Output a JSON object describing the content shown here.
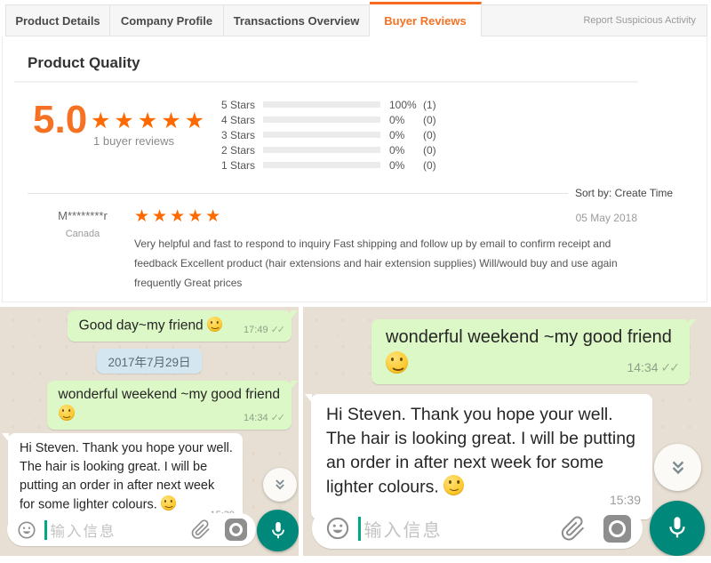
{
  "tabs": {
    "items": [
      {
        "label": "Product Details"
      },
      {
        "label": "Company Profile"
      },
      {
        "label": "Transactions Overview"
      },
      {
        "label": "Buyer Reviews"
      }
    ],
    "active": "Buyer Reviews",
    "report_link": "Report Suspicious Activity"
  },
  "reviews": {
    "title": "Product Quality",
    "score": "5.0",
    "stars": "★★★★★",
    "count_label": "1 buyer reviews",
    "breakdown": [
      {
        "label": "5 Stars",
        "percent": "100%",
        "count": "(1)",
        "value": 100
      },
      {
        "label": "4 Stars",
        "percent": "0%",
        "count": "(0)",
        "value": 0
      },
      {
        "label": "3 Stars",
        "percent": "0%",
        "count": "(0)",
        "value": 0
      },
      {
        "label": "2 Stars",
        "percent": "0%",
        "count": "(0)",
        "value": 0
      },
      {
        "label": "1 Stars",
        "percent": "0%",
        "count": "(0)",
        "value": 0
      }
    ],
    "sort_label": "Sort by: Create Time",
    "review": {
      "user": "M********r",
      "country": "Canada",
      "stars": "★★★★★",
      "date": "05 May 2018",
      "text": "Very helpful and fast to respond to inquiry Fast shipping and follow up by email to confirm receipt and feedback Excellent product (hair extensions and hair extension supplies) Will/would buy and use again frequently Great prices"
    }
  },
  "chat_left": {
    "out1": {
      "text": "Good day~my friend",
      "emoji": "slightly-smiling-face",
      "time": "17:49",
      "ticks": "✓✓"
    },
    "date_divider": "2017年7月29日",
    "out2": {
      "text": "wonderful weekend ~my good friend",
      "emoji": "slightly-smiling-face",
      "time": "14:34",
      "ticks": "✓✓"
    },
    "in1": {
      "text": "Hi Steven. Thank you hope your well. The hair is looking great. I will be putting an order in after next week for some lighter colours.",
      "emoji": "smiling-face-with-smiling-eyes",
      "time": "15:39"
    },
    "input_placeholder": "输入信息"
  },
  "chat_right": {
    "out1": {
      "text": "wonderful weekend ~my good friend",
      "emoji": "slightly-smiling-face",
      "time": "14:34",
      "ticks": "✓✓"
    },
    "in1": {
      "text": "Hi Steven. Thank you hope your well. The hair is looking great. I will be putting an order in after next week for some lighter colours.",
      "emoji": "smiling-face-with-smiling-eyes",
      "time": "15:39"
    },
    "input_placeholder": "输入信息"
  },
  "colors": {
    "accent_orange": "#f57224",
    "star_orange": "#ff6a00",
    "bubble_green": "#dcf8c6",
    "mic_teal": "#00897b",
    "chat_background": "#e7dfd3"
  }
}
